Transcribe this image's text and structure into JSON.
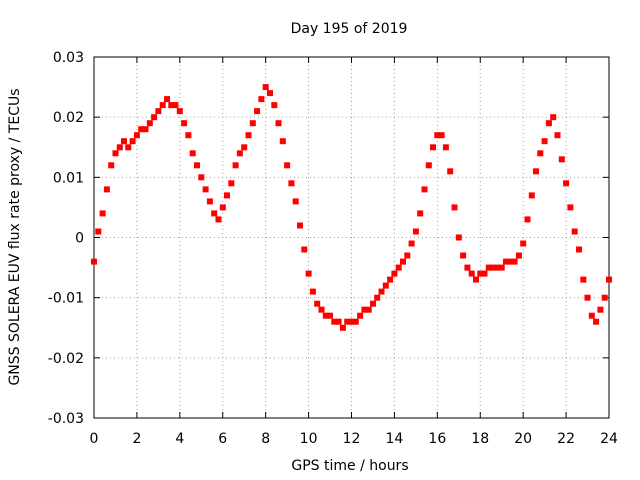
{
  "chart_data": {
    "type": "scatter",
    "title": "Day 195 of 2019",
    "xlabel": "GPS time / hours",
    "ylabel": "GNSS SOLERA EUV flux rate proxy / TECUs",
    "xlim": [
      0,
      24
    ],
    "ylim": [
      -0.03,
      0.03
    ],
    "x_ticks": [
      0,
      2,
      4,
      6,
      8,
      10,
      12,
      14,
      16,
      18,
      20,
      22,
      24
    ],
    "x_tick_labels": [
      "0",
      "2",
      "4",
      "6",
      "8",
      "10",
      "12",
      "14",
      "16",
      "18",
      "20",
      "22",
      "24"
    ],
    "y_ticks": [
      -0.03,
      -0.02,
      -0.01,
      0,
      0.01,
      0.02,
      0.03
    ],
    "y_tick_labels": [
      "-0.03",
      "-0.02",
      "-0.01",
      "0",
      "0.01",
      "0.02",
      "0.03"
    ],
    "grid": true,
    "marker": "square",
    "color": "#ff0000",
    "series": [
      {
        "x": [
          0.0,
          0.2,
          0.4,
          0.6,
          0.8,
          1.0,
          1.2,
          1.4,
          1.6,
          1.8,
          2.0,
          2.2,
          2.4,
          2.6,
          2.8,
          3.0,
          3.2,
          3.4,
          3.6,
          3.8,
          4.0,
          4.2,
          4.4,
          4.6,
          4.8,
          5.0,
          5.2,
          5.4,
          5.6,
          5.8,
          6.0,
          6.2,
          6.4,
          6.6,
          6.8,
          7.0,
          7.2,
          7.4,
          7.6,
          7.8,
          8.0,
          8.2,
          8.4,
          8.6,
          8.8,
          9.0,
          9.2,
          9.4,
          9.6,
          9.8,
          10.0,
          10.2,
          10.4,
          10.6,
          10.8,
          11.0,
          11.2,
          11.4,
          11.6,
          11.8,
          12.0,
          12.2,
          12.4,
          12.6,
          12.8,
          13.0,
          13.2,
          13.4,
          13.6,
          13.8,
          14.0,
          14.2,
          14.4,
          14.6,
          14.8,
          15.0,
          15.2,
          15.4,
          15.6,
          15.8,
          16.0,
          16.2,
          16.4,
          16.6,
          16.8,
          17.0,
          17.2,
          17.4,
          17.6,
          17.8,
          18.0,
          18.2,
          18.4,
          18.6,
          18.8,
          19.0,
          19.2,
          19.4,
          19.6,
          19.8,
          20.0,
          20.2,
          20.4,
          20.6,
          20.8,
          21.0,
          21.2,
          21.4,
          21.6,
          21.8,
          22.0,
          22.2,
          22.4,
          22.6,
          22.8,
          23.0,
          23.2,
          23.4,
          23.6,
          23.8,
          24.0
        ],
        "y": [
          -0.004,
          0.001,
          0.004,
          0.008,
          0.012,
          0.014,
          0.015,
          0.016,
          0.015,
          0.016,
          0.017,
          0.018,
          0.018,
          0.019,
          0.02,
          0.021,
          0.022,
          0.023,
          0.022,
          0.022,
          0.021,
          0.019,
          0.017,
          0.014,
          0.012,
          0.01,
          0.008,
          0.006,
          0.004,
          0.003,
          0.005,
          0.007,
          0.009,
          0.012,
          0.014,
          0.015,
          0.017,
          0.019,
          0.021,
          0.023,
          0.025,
          0.024,
          0.022,
          0.019,
          0.016,
          0.012,
          0.009,
          0.006,
          0.002,
          -0.002,
          -0.006,
          -0.009,
          -0.011,
          -0.012,
          -0.013,
          -0.013,
          -0.014,
          -0.014,
          -0.015,
          -0.014,
          -0.014,
          -0.014,
          -0.013,
          -0.012,
          -0.012,
          -0.011,
          -0.01,
          -0.009,
          -0.008,
          -0.007,
          -0.006,
          -0.005,
          -0.004,
          -0.003,
          -0.001,
          0.001,
          0.004,
          0.008,
          0.012,
          0.015,
          0.017,
          0.017,
          0.015,
          0.011,
          0.005,
          0.0,
          -0.003,
          -0.005,
          -0.006,
          -0.007,
          -0.006,
          -0.006,
          -0.005,
          -0.005,
          -0.005,
          -0.005,
          -0.004,
          -0.004,
          -0.004,
          -0.003,
          -0.001,
          0.003,
          0.007,
          0.011,
          0.014,
          0.016,
          0.019,
          0.02,
          0.017,
          0.013,
          0.009,
          0.005,
          0.001,
          -0.002,
          -0.007,
          -0.01,
          -0.013,
          -0.014,
          -0.012,
          -0.01,
          -0.007
        ]
      }
    ]
  }
}
